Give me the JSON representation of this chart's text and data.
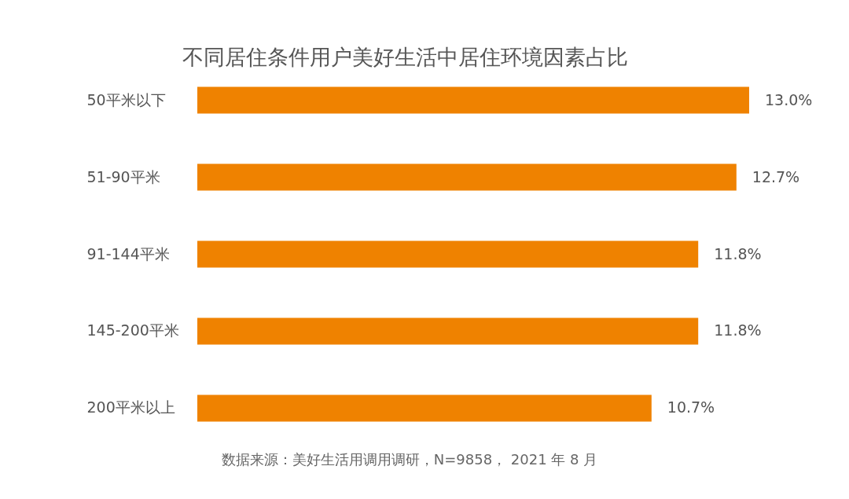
{
  "chart_data": {
    "type": "bar",
    "orientation": "horizontal",
    "title": "不同居住条件用户美好生活中居住环境因素占比",
    "categories": [
      "50平米以下",
      "51-90平米",
      "91-144平米",
      "145-200平米",
      "200平米以上"
    ],
    "values": [
      13.0,
      12.7,
      11.8,
      11.8,
      10.7
    ],
    "color": "#ef8200",
    "value_labels": [
      "13.0%",
      "12.7%",
      "11.8%",
      "11.8%",
      "10.7%"
    ],
    "annotations": [
      "数据来源：美好生活用调用调研，N=9858， 2021 年 8 月"
    ]
  }
}
